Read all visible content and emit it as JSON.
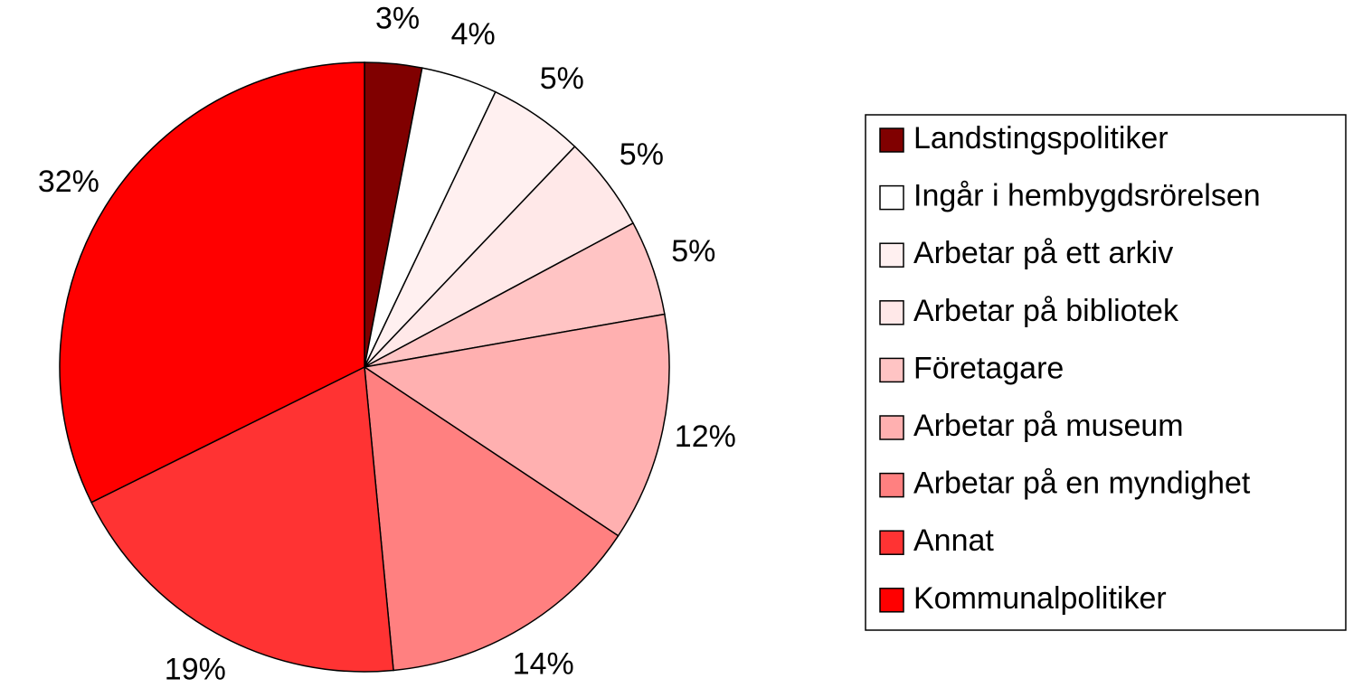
{
  "chart_data": {
    "type": "pie",
    "categories": [
      "Landstingspolitiker",
      "Ingår i hembygdsrörelsen",
      "Arbetar på ett arkiv",
      "Arbetar på bibliotek",
      "Företagare",
      "Arbetar på museum",
      "Arbetar på en myndighet",
      "Annat",
      "Kommunalpolitiker"
    ],
    "values": [
      3,
      4,
      5,
      5,
      5,
      12,
      14,
      19,
      32
    ],
    "colors": [
      "#800000",
      "#ffffff",
      "#fff0f0",
      "#ffe8e8",
      "#ffc4c4",
      "#ffb0b0",
      "#ff8080",
      "#ff3333",
      "#ff0000"
    ],
    "legend": "right"
  }
}
